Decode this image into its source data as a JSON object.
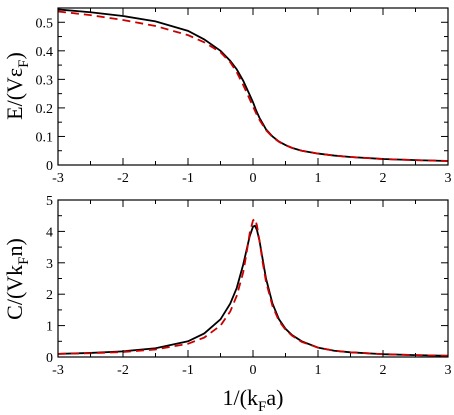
{
  "chart_data": [
    {
      "type": "line",
      "ylabel": {
        "main": "E/(Vε",
        "sub": "F",
        "close": ")"
      },
      "xlabel": "",
      "xlim": [
        -3,
        3
      ],
      "ylim": [
        0,
        0.55
      ],
      "xticks": [
        -3,
        -2,
        -1,
        0,
        1,
        2,
        3
      ],
      "yticks": [
        0,
        0.1,
        0.2,
        0.3,
        0.4,
        0.5
      ],
      "ytick_labels": [
        "0",
        "0.1",
        "0.2",
        "0.3",
        "0.4",
        "0.5"
      ],
      "grid": false,
      "legend": "none",
      "series": [
        {
          "color": "#000000",
          "dash": "solid",
          "x": [
            -3,
            -2.5,
            -2,
            -1.5,
            -1,
            -0.75,
            -0.5,
            -0.35,
            -0.25,
            -0.15,
            -0.05,
            0,
            0.05,
            0.1,
            0.15,
            0.2,
            0.3,
            0.4,
            0.5,
            0.6,
            0.75,
            1,
            1.25,
            1.5,
            2,
            2.5,
            3
          ],
          "y": [
            0.545,
            0.535,
            0.522,
            0.503,
            0.47,
            0.44,
            0.4,
            0.365,
            0.335,
            0.295,
            0.245,
            0.22,
            0.19,
            0.165,
            0.145,
            0.125,
            0.1,
            0.082,
            0.07,
            0.06,
            0.05,
            0.04,
            0.033,
            0.028,
            0.021,
            0.017,
            0.014
          ]
        },
        {
          "color": "#cc0000",
          "dash": "dashed",
          "x": [
            -3,
            -2.5,
            -2,
            -1.5,
            -1,
            -0.75,
            -0.5,
            -0.35,
            -0.25,
            -0.15,
            -0.05,
            0,
            0.05,
            0.1,
            0.15,
            0.2,
            0.3,
            0.4,
            0.5,
            0.6,
            0.75,
            1,
            1.25,
            1.5,
            2,
            2.5,
            3
          ],
          "y": [
            0.538,
            0.525,
            0.508,
            0.487,
            0.455,
            0.43,
            0.395,
            0.36,
            0.325,
            0.28,
            0.23,
            0.205,
            0.18,
            0.158,
            0.14,
            0.122,
            0.098,
            0.081,
            0.069,
            0.06,
            0.05,
            0.04,
            0.033,
            0.028,
            0.021,
            0.017,
            0.014
          ]
        }
      ]
    },
    {
      "type": "line",
      "ylabel": {
        "main": "C/(Vk",
        "sub": "F",
        "close": "n)"
      },
      "xlabel": {
        "main": "1/(k",
        "sub": "F",
        "close": "a)"
      },
      "xlim": [
        -3,
        3
      ],
      "ylim": [
        0,
        5
      ],
      "xticks": [
        -3,
        -2,
        -1,
        0,
        1,
        2,
        3
      ],
      "yticks": [
        0,
        1,
        2,
        3,
        4,
        5
      ],
      "ytick_labels": [
        "0",
        "1",
        "2",
        "3",
        "4",
        "5"
      ],
      "grid": false,
      "legend": "none",
      "series": [
        {
          "color": "#000000",
          "dash": "solid",
          "x": [
            -3,
            -2.5,
            -2,
            -1.5,
            -1,
            -0.75,
            -0.5,
            -0.35,
            -0.25,
            -0.15,
            -0.1,
            -0.05,
            0,
            0.03,
            0.06,
            0.1,
            0.15,
            0.2,
            0.3,
            0.4,
            0.5,
            0.6,
            0.75,
            1,
            1.25,
            1.5,
            2,
            2.5,
            3
          ],
          "y": [
            0.1,
            0.13,
            0.18,
            0.28,
            0.5,
            0.75,
            1.2,
            1.7,
            2.2,
            2.95,
            3.4,
            3.85,
            4.15,
            4.18,
            4.05,
            3.7,
            3.1,
            2.5,
            1.7,
            1.2,
            0.9,
            0.7,
            0.5,
            0.3,
            0.2,
            0.15,
            0.09,
            0.06,
            0.04
          ]
        },
        {
          "color": "#cc0000",
          "dash": "dashed",
          "x": [
            -3,
            -2.5,
            -2,
            -1.5,
            -1,
            -0.75,
            -0.5,
            -0.35,
            -0.25,
            -0.15,
            -0.1,
            -0.05,
            0,
            0.03,
            0.06,
            0.1,
            0.15,
            0.2,
            0.3,
            0.4,
            0.5,
            0.6,
            0.75,
            1,
            1.25,
            1.5,
            2,
            2.5,
            3
          ],
          "y": [
            0.1,
            0.12,
            0.16,
            0.24,
            0.42,
            0.62,
            1.0,
            1.45,
            1.95,
            2.7,
            3.3,
            3.95,
            4.35,
            4.4,
            4.2,
            3.7,
            3.0,
            2.4,
            1.62,
            1.15,
            0.87,
            0.68,
            0.48,
            0.3,
            0.2,
            0.15,
            0.09,
            0.06,
            0.04
          ]
        }
      ]
    }
  ]
}
